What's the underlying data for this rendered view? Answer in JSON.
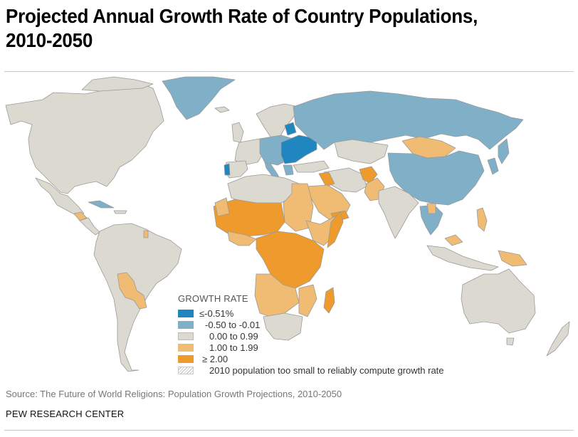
{
  "header": {
    "title": "Projected Annual Growth Rate of Country Populations, 2010-2050"
  },
  "colors": {
    "very_negative": "#1f86c0",
    "negative": "#7fb0c8",
    "low": "#dcdad0",
    "medium": "#f0bb72",
    "high": "#ee9a2c",
    "border": "#9a9a9a"
  },
  "legend": {
    "title": "GROWTH RATE",
    "items": [
      {
        "label": "≤-0.51%",
        "key": "very_negative"
      },
      {
        "label": "-0.50 to -0.01",
        "key": "negative"
      },
      {
        "label": "0.00 to 0.99",
        "key": "low"
      },
      {
        "label": "1.00 to 1.99",
        "key": "medium"
      },
      {
        "label": "≥ 2.00",
        "key": "high"
      },
      {
        "label": "2010 population too small to reliably compute growth rate",
        "key": "hatched"
      }
    ]
  },
  "footer": {
    "source": "Source: The Future of World Religions: Population Growth Projections, 2010-2050",
    "brand": "PEW RESEARCH CENTER"
  }
}
